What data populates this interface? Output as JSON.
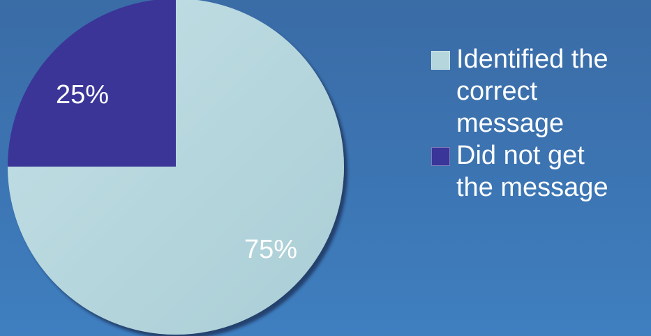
{
  "chart_data": {
    "type": "pie",
    "slices": [
      {
        "label": "Identified the correct message",
        "value": 75,
        "display": "75%",
        "color": "#b5d6dd"
      },
      {
        "label": "Did not get the message",
        "value": 25,
        "display": "25%",
        "color": "#3a3598"
      }
    ],
    "legend_placement": "right",
    "start_angle": "top, counter-clockwise for second slice"
  },
  "legend": {
    "items": [
      {
        "lines": [
          "Identified the",
          "correct",
          "message"
        ],
        "color": "#b5d6dd"
      },
      {
        "lines": [
          "Did not get",
          "the message"
        ],
        "color": "#3a3598"
      }
    ]
  },
  "colors": {
    "background": "#3c74b2",
    "text": "#ffffff"
  }
}
